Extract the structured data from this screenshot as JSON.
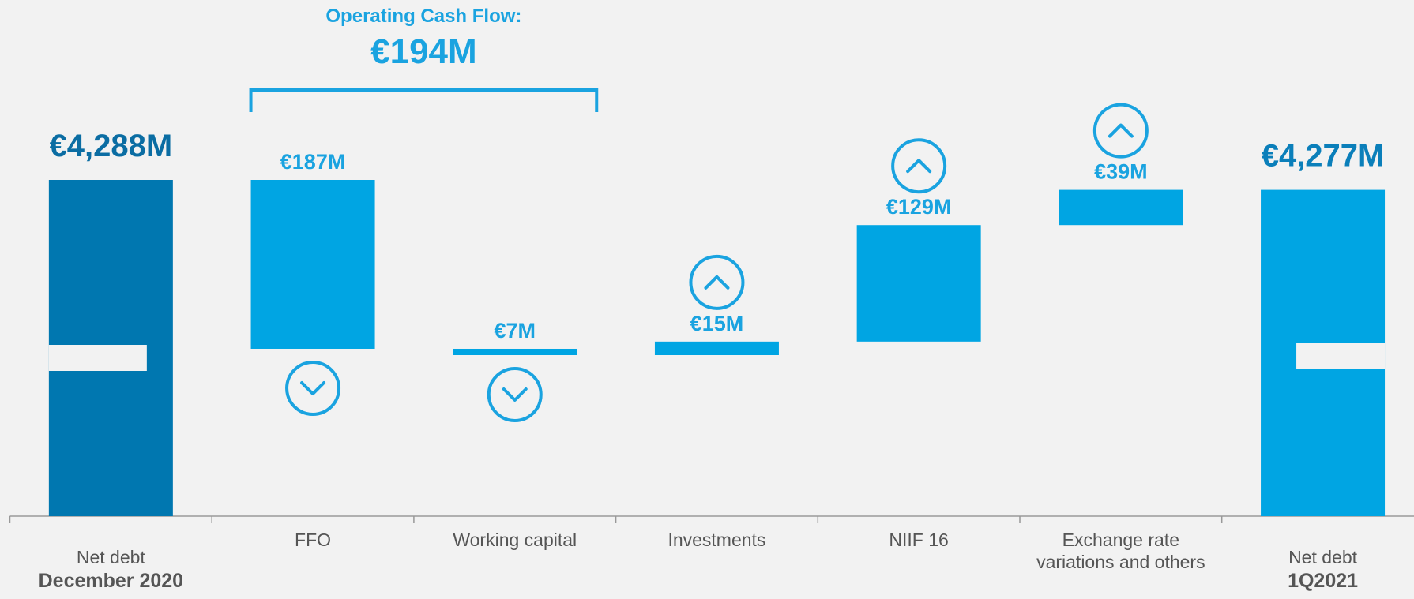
{
  "chart_data": {
    "type": "waterfall",
    "categories": [
      "Net debt",
      "FFO",
      "Working capital",
      "Investments",
      "NIIF 16",
      "Exchange rate variations and others",
      "Net debt"
    ],
    "category_periods": [
      "December 2020",
      null,
      null,
      null,
      null,
      null,
      "1Q2021"
    ],
    "values": [
      4288,
      187,
      7,
      15,
      129,
      39,
      4277
    ],
    "value_labels": [
      "€4,288M",
      "€187M",
      "€7M",
      "€15M",
      "€129M",
      "€39M",
      "€4,277M"
    ],
    "kinds": [
      "total",
      "decrease",
      "decrease",
      "increase",
      "increase",
      "increase",
      "total"
    ],
    "colors": [
      "#0077b0",
      "#00a5e3",
      "#00a5e3",
      "#00a5e3",
      "#00a5e3",
      "#00a5e3",
      "#00a5e3"
    ],
    "annotation": {
      "title": "Operating Cash Flow:",
      "value": 194,
      "value_label": "€194M",
      "categories": [
        "FFO",
        "Working capital"
      ]
    }
  }
}
